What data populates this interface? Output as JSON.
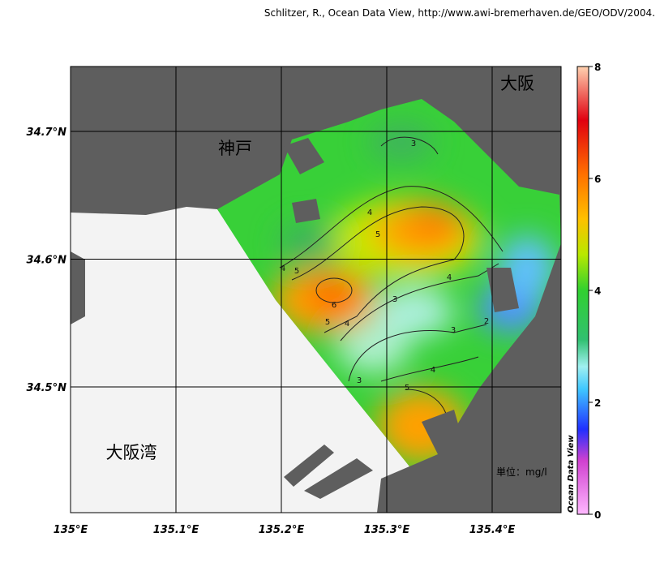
{
  "header": {
    "credit": "Schlitzer, R., Ocean Data View, http://www.awi-bremerhaven.de/GEO/ODV/2004."
  },
  "map": {
    "x_ticks": [
      "135°E",
      "135.1°E",
      "135.2°E",
      "135.3°E",
      "135.4°E"
    ],
    "y_ticks": [
      "34.7°N",
      "34.6°N",
      "34.5°N"
    ],
    "places": [
      "大阪",
      "神戸",
      "大阪湾"
    ],
    "unit": "単位：mg/l",
    "contour_labels": [
      3,
      4,
      5,
      4,
      5,
      6,
      5,
      4,
      3,
      4,
      3,
      2,
      4,
      3,
      5
    ]
  },
  "colorbar": {
    "label": "Ocean Data View",
    "ticks": [
      0,
      2,
      4,
      6,
      8
    ]
  }
}
